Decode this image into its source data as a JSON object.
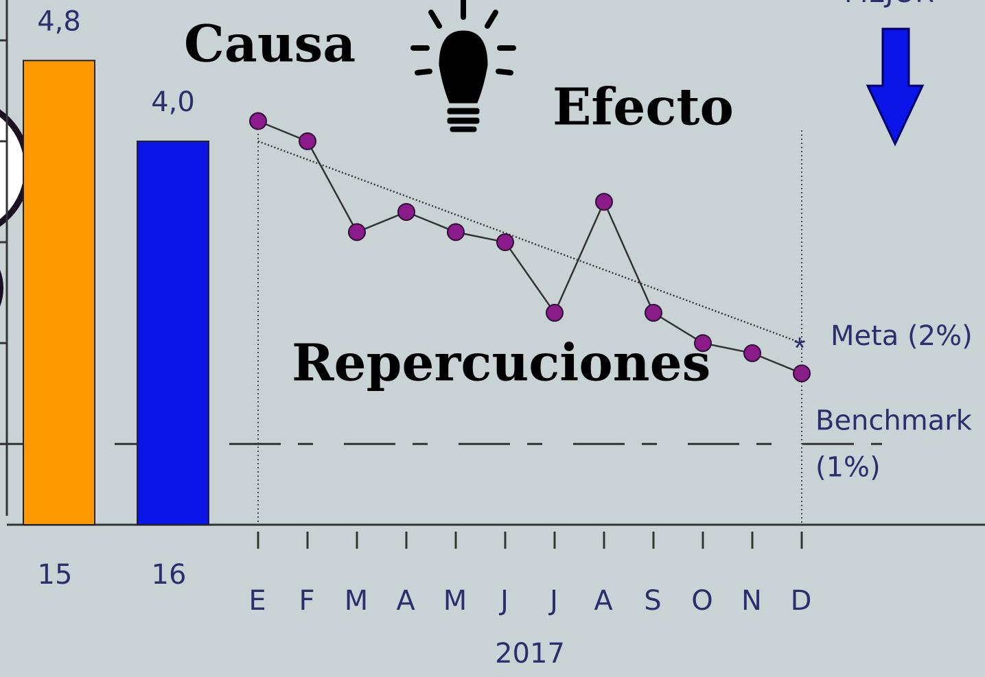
{
  "chart_data": {
    "type": "combo",
    "annotations": {
      "cause": "Causa",
      "effect": "Efecto",
      "impact": "Repercuciones",
      "better": "MEJOR"
    },
    "bars": {
      "categories": [
        "15",
        "16"
      ],
      "values": [
        4.8,
        4.0
      ],
      "value_labels": [
        "4,8",
        "4,0"
      ],
      "colors": [
        "#ff9900",
        "#0a14e6"
      ]
    },
    "line": {
      "categories": [
        "E",
        "F",
        "M",
        "A",
        "M",
        "J",
        "J",
        "A",
        "S",
        "O",
        "N",
        "D"
      ],
      "values": [
        4.2,
        4.0,
        3.1,
        3.3,
        3.1,
        3.0,
        2.3,
        3.4,
        2.3,
        2.0,
        1.9,
        1.7
      ],
      "trend": [
        4.0,
        2.0
      ],
      "color": "#8b1a8b",
      "x_label": "2017"
    },
    "target": {
      "label": "Meta (2%)",
      "value": 2
    },
    "benchmark": {
      "label": [
        "Benchmark",
        "(1%)"
      ],
      "value": 1
    },
    "ylim": [
      0.2,
      5.4
    ],
    "yticks": [
      1,
      2,
      3,
      4,
      5
    ]
  }
}
